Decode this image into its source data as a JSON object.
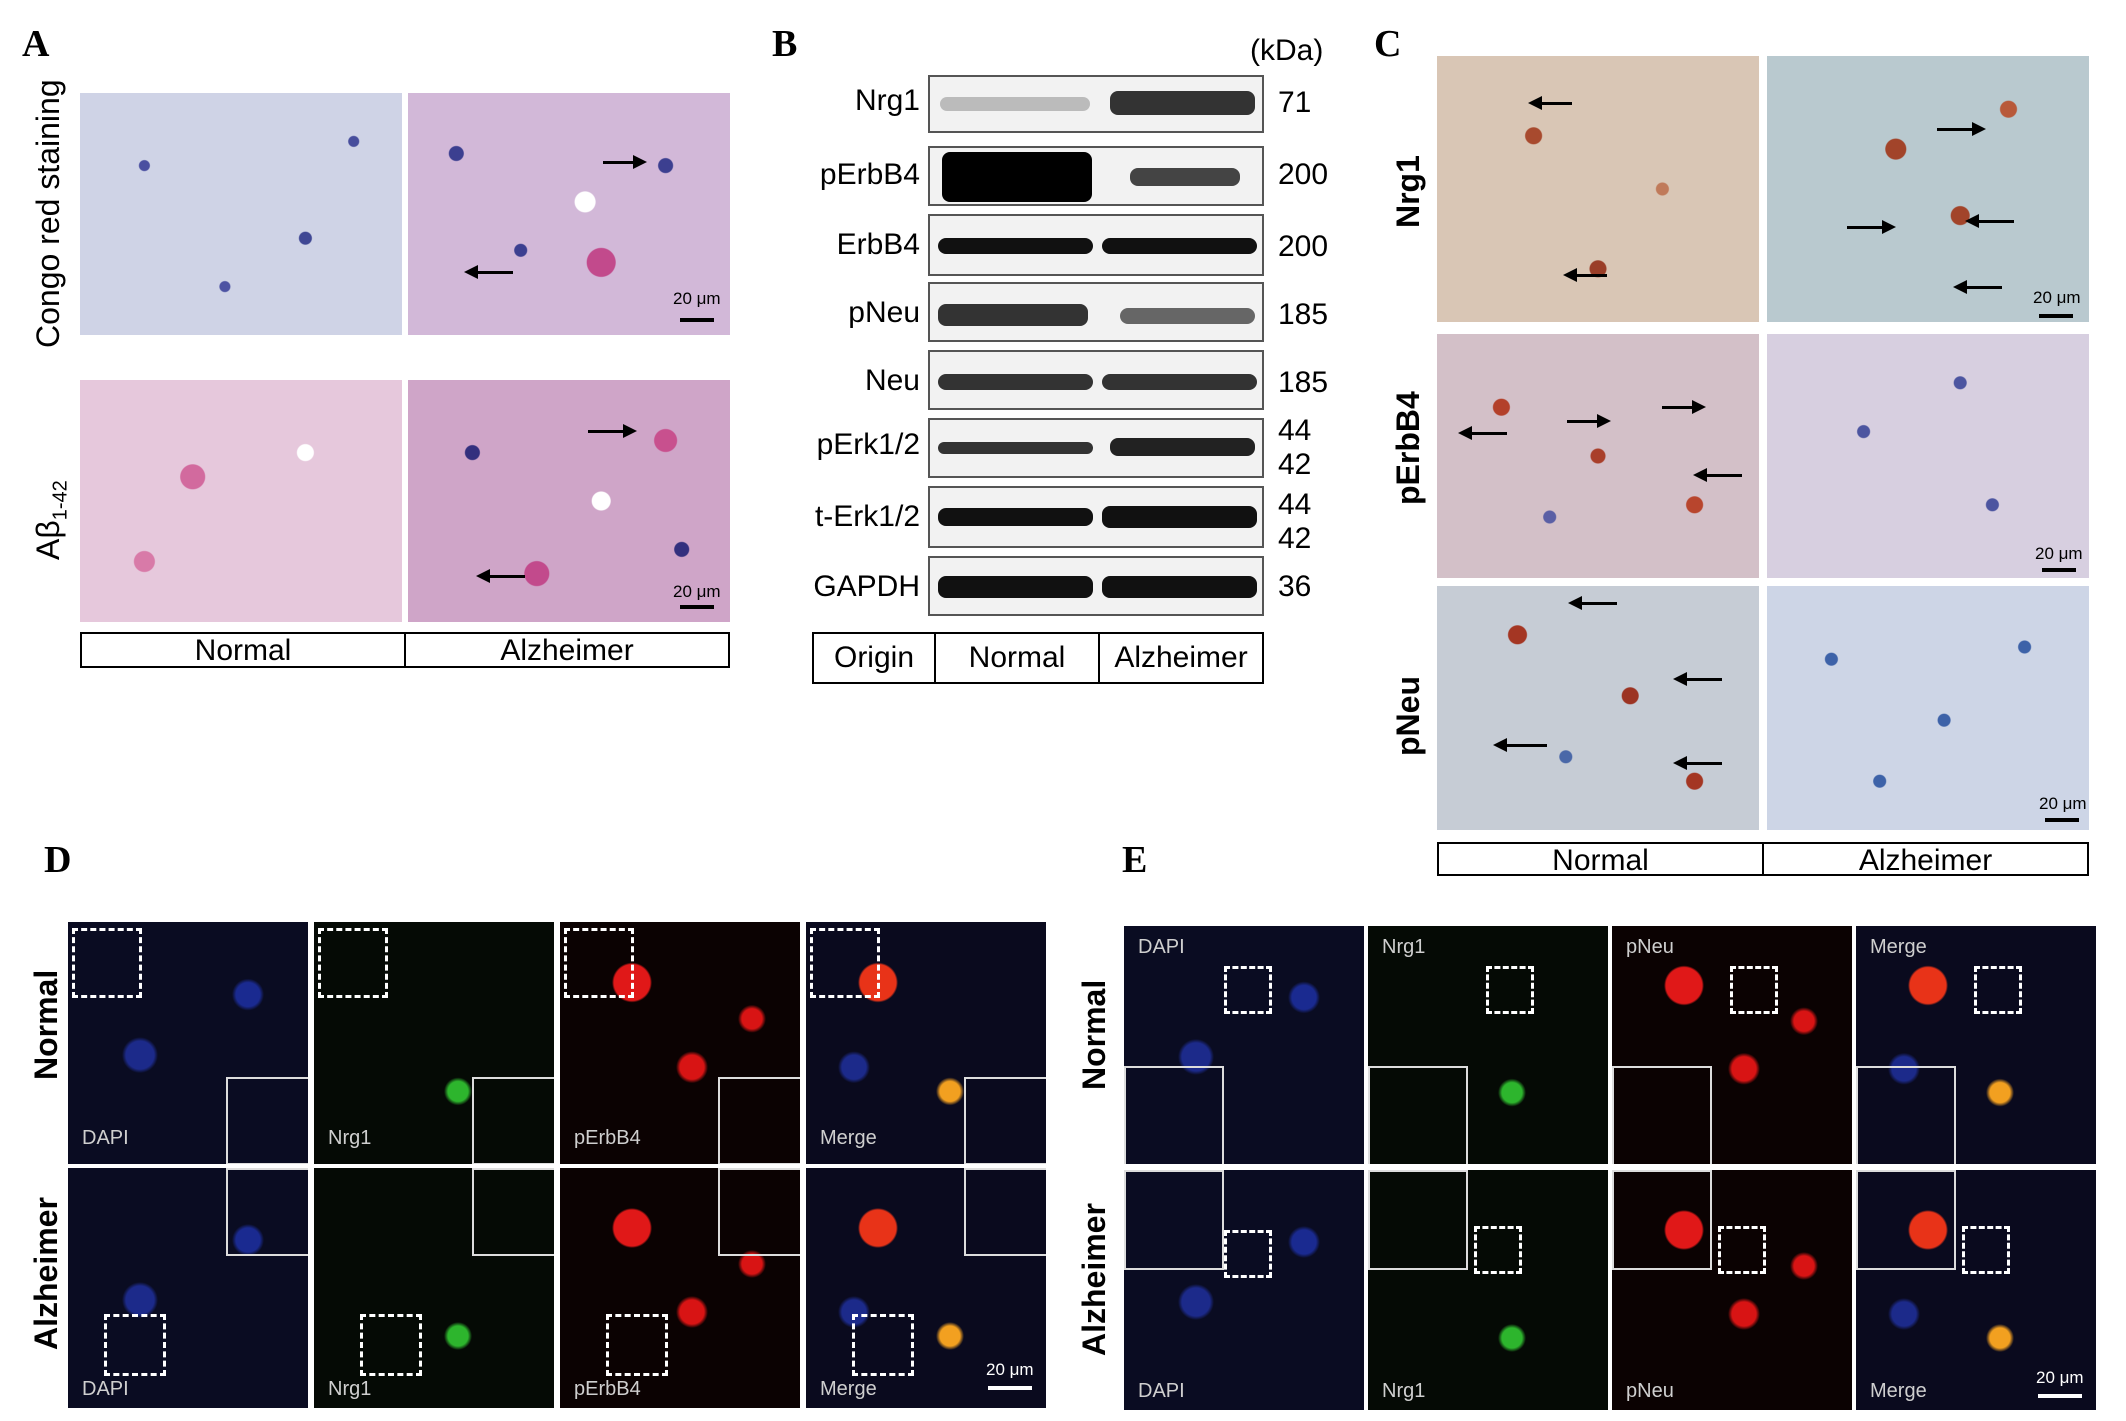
{
  "panels": {
    "A": {
      "label": "A",
      "row_labels": [
        "Congo red staining",
        "Aβ1-42"
      ],
      "row_labels_sub": {
        "base": "Aβ",
        "sub": "1-42"
      },
      "columns": [
        "Normal",
        "Alzheimer"
      ],
      "scale": "20 μm"
    },
    "B": {
      "label": "B",
      "kda_header": "(kDa)",
      "rows": [
        {
          "name": "Nrg1",
          "kda": "71"
        },
        {
          "name": "pErbB4",
          "kda": "200"
        },
        {
          "name": "ErbB4",
          "kda": "200"
        },
        {
          "name": "pNeu",
          "kda": "185"
        },
        {
          "name": "Neu",
          "kda": "185"
        },
        {
          "name": "pErk1/2",
          "kda": "44\n42"
        },
        {
          "name": "t-Erk1/2",
          "kda": "44\n42"
        },
        {
          "name": "GAPDH",
          "kda": "36"
        }
      ],
      "legend": [
        "Origin",
        "Normal",
        "Alzheimer"
      ]
    },
    "C": {
      "label": "C",
      "row_labels": [
        "Nrg1",
        "pErbB4",
        "pNeu"
      ],
      "columns": [
        "Normal",
        "Alzheimer"
      ],
      "scale": "20 μm"
    },
    "D": {
      "label": "D",
      "row_labels": [
        "Normal",
        "Alzheimer"
      ],
      "channels": [
        "DAPI",
        "Nrg1",
        "pErbB4",
        "Merge"
      ],
      "scale": "20 μm"
    },
    "E": {
      "label": "E",
      "row_labels": [
        "Normal",
        "Alzheimer"
      ],
      "channels": [
        "DAPI",
        "Nrg1",
        "pNeu",
        "Merge"
      ],
      "scale": "20 μm"
    }
  }
}
